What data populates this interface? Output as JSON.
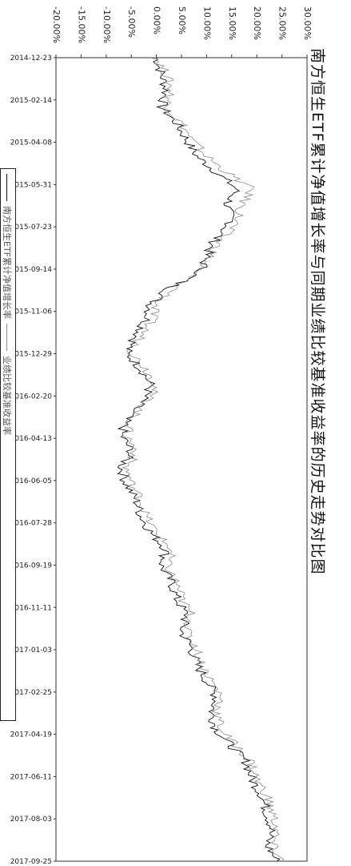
{
  "chart_data": {
    "type": "line",
    "title": "南方恒生ETF累计净值增长率与同期业绩比较基准收益率的历史走势对比图",
    "y_ticks": [
      "30.00%",
      "25.00%",
      "20.00%",
      "15.00%",
      "10.00%",
      "5.00%",
      "0.00%",
      "-5.00%",
      "-10.00%",
      "-15.00%",
      "-20.00%"
    ],
    "ylim": [
      -20,
      30
    ],
    "x_ticks": [
      "2014-12-23",
      "2015-02-14",
      "2015-04-08",
      "2015-05-31",
      "2015-07-23",
      "2015-09-14",
      "2015-11-06",
      "2015-12-29",
      "2016-02-20",
      "2016-04-13",
      "2016-06-05",
      "2016-07-28",
      "2016-09-19",
      "2016-11-11",
      "2017-01-03",
      "2017-02-25",
      "2017-04-19",
      "2017-06-11",
      "2017-08-03",
      "2017-09-25"
    ],
    "series": [
      {
        "name": "南方恒生ETF累计净值增长率",
        "color": "#111111",
        "values": [
          0,
          1,
          2,
          1,
          4,
          6,
          8,
          12,
          16,
          14,
          15,
          12,
          10,
          9,
          3,
          -1,
          -2,
          -4,
          -6,
          -3,
          -1,
          -3,
          -6,
          -7,
          -5,
          -7,
          -6,
          -4,
          -3,
          -1,
          2,
          1,
          3,
          4,
          6,
          5,
          7,
          8,
          10,
          12,
          11,
          12,
          15,
          18,
          19,
          21,
          22,
          23,
          22,
          24
        ]
      },
      {
        "name": "业绩比较基准收益率",
        "color": "#8c8c8c",
        "values": [
          0,
          2,
          3,
          2,
          5,
          7,
          10,
          14,
          19,
          17,
          16,
          13,
          11,
          8,
          4,
          0,
          -1,
          -3,
          -5,
          -2,
          0,
          -2,
          -5,
          -6,
          -4,
          -6,
          -5,
          -3,
          -2,
          0,
          3,
          2,
          4,
          5,
          7,
          6,
          8,
          9,
          11,
          13,
          12,
          13,
          16,
          19,
          20,
          22,
          23,
          24,
          23,
          25
        ]
      }
    ],
    "legend": "bottom"
  }
}
